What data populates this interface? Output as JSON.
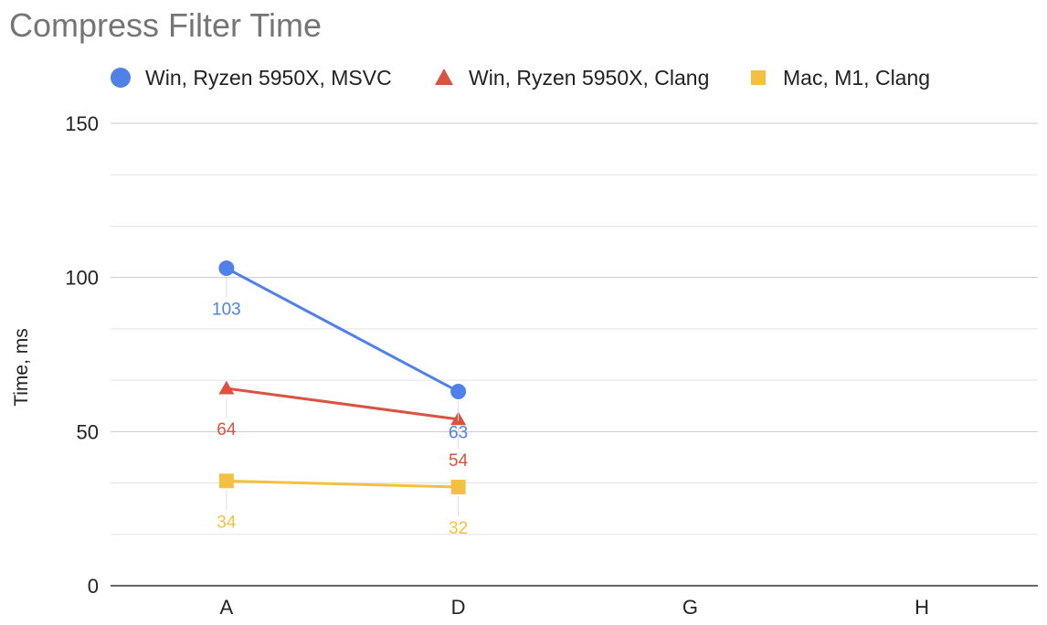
{
  "chart_data": {
    "type": "line",
    "title": "Compress Filter Time",
    "xlabel": "",
    "ylabel": "Time, ms",
    "categories": [
      "A",
      "D",
      "G",
      "H"
    ],
    "ylim": [
      0,
      150
    ],
    "yticks": [
      0,
      50,
      100,
      150
    ],
    "grid": true,
    "legend_position": "top",
    "series": [
      {
        "name": "Win, Ryzen 5950X, MSVC",
        "marker": "circle",
        "color": "#4f81e9",
        "values": [
          103,
          63,
          null,
          null
        ],
        "labels": [
          "103",
          "63",
          "",
          ""
        ]
      },
      {
        "name": "Win, Ryzen 5950X, Clang",
        "marker": "triangle",
        "color": "#d95440",
        "values": [
          64,
          54,
          null,
          null
        ],
        "labels": [
          "64",
          "54",
          "",
          ""
        ]
      },
      {
        "name": "Mac, M1, Clang",
        "marker": "square",
        "color": "#f4c042",
        "values": [
          34,
          32,
          null,
          null
        ],
        "labels": [
          "34",
          "32",
          "",
          ""
        ]
      }
    ]
  }
}
